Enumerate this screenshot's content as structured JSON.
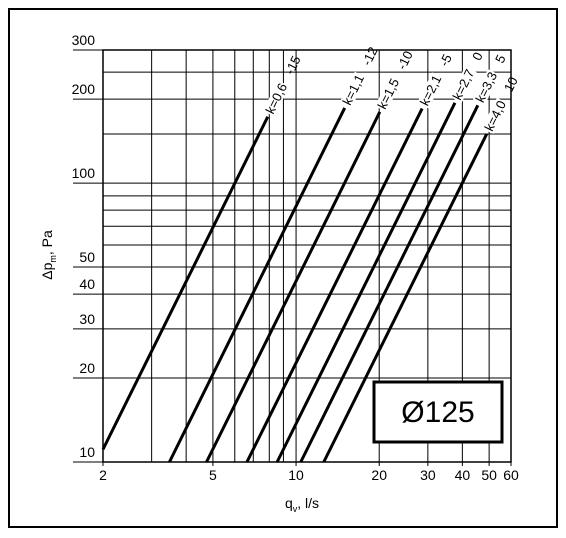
{
  "chart_data": {
    "type": "line",
    "log_x": true,
    "log_y": true,
    "grid": true,
    "xlabel": {
      "main": "q",
      "sub": "v",
      "rest": ", l/s"
    },
    "ylabel": {
      "main": "Δp",
      "sub": "m",
      "rest": ", Pa"
    },
    "annotation": "Ø125",
    "xlim": [
      2,
      60
    ],
    "ylim": [
      10,
      300
    ],
    "xticks": [
      2,
      5,
      10,
      20,
      30,
      40,
      50,
      60
    ],
    "yticks": [
      10,
      20,
      30,
      40,
      50,
      100,
      200,
      300
    ],
    "xminor": [
      3,
      4,
      6,
      7,
      8,
      9
    ],
    "yminor": [
      60,
      70,
      80,
      90,
      150,
      250
    ],
    "series": [
      {
        "name": "k=0,6",
        "top_label": "-15",
        "color": "#000000",
        "x": [
          2,
          7.9
        ],
        "values": [
          11.1,
          173
        ]
      },
      {
        "name": "k=1,1",
        "top_label": "-12",
        "color": "#000000",
        "x": [
          3.48,
          15
        ],
        "values": [
          10,
          186
        ]
      },
      {
        "name": "k=1,5",
        "top_label": "-10",
        "color": "#000000",
        "x": [
          4.74,
          20.1
        ],
        "values": [
          10,
          180
        ]
      },
      {
        "name": "k=2,1",
        "top_label": "-5",
        "color": "#000000",
        "x": [
          6.64,
          28.6
        ],
        "values": [
          10,
          185
        ]
      },
      {
        "name": "k=2,7",
        "top_label": "0",
        "color": "#000000",
        "x": [
          8.54,
          37.6
        ],
        "values": [
          10,
          194
        ]
      },
      {
        "name": "k=3,3",
        "top_label": "5",
        "color": "#000000",
        "x": [
          10.4,
          45.5
        ],
        "values": [
          10,
          190
        ]
      },
      {
        "name": "k=4,0",
        "top_label": "10",
        "color": "#000000",
        "x": [
          12.6,
          49
        ],
        "values": [
          10,
          150
        ]
      }
    ]
  }
}
